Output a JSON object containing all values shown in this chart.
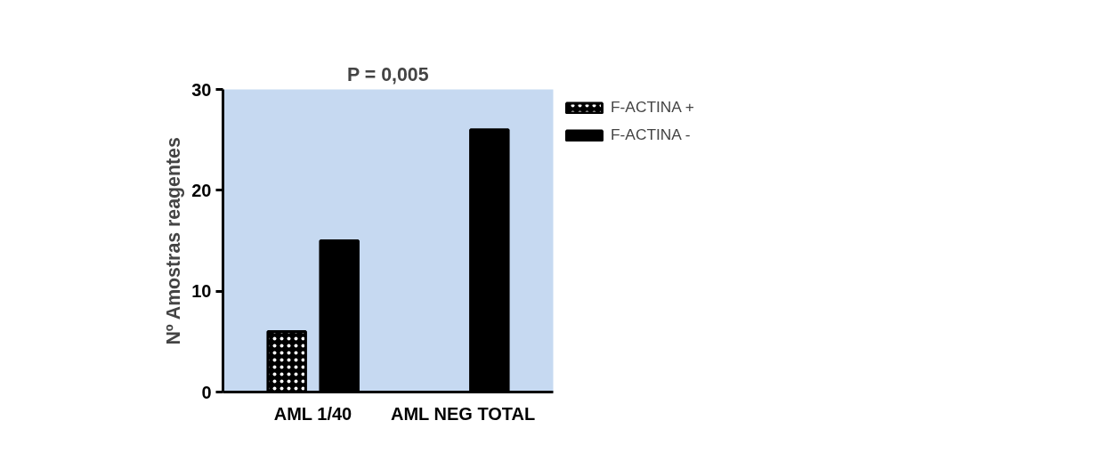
{
  "chart_data": {
    "type": "bar",
    "title": "P = 0,005",
    "ylabel": "Nº Amostras reagentes",
    "categories": [
      "AML 1/40",
      "AML NEG TOTAL"
    ],
    "series": [
      {
        "name": "F-ACTINA +",
        "color": "#000000",
        "values": [
          6,
          0
        ]
      },
      {
        "name": "F-ACTINA -",
        "color": "#000000",
        "values": [
          15,
          26
        ]
      }
    ],
    "ylim": [
      0,
      30
    ],
    "yticks": [
      0,
      10,
      20,
      30
    ],
    "grid": false,
    "legend": "right"
  }
}
